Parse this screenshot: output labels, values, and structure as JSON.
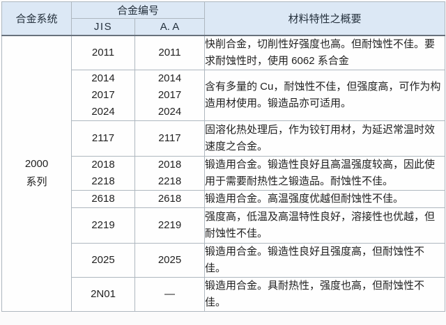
{
  "table": {
    "header": {
      "system": "合金系统",
      "alloy_number": "合金编号",
      "jis": "JIS",
      "aa": "A. A",
      "description": "材料特性之概要"
    },
    "system_group": "2000\n系列",
    "rows": [
      {
        "jis": "2011",
        "aa": "2011",
        "desc": "快削合金，切削性好强度也高。但耐蚀性不佳。要求耐蚀性时，使用 6062 系合金"
      },
      {
        "jis": "2014\n2017\n2024",
        "aa": "2014\n2017\n2024",
        "desc": "含有多量的 Cu，耐蚀性不佳，但强度高，可作为构造用材使用。锻造品亦可适用。"
      },
      {
        "jis": "2117",
        "aa": "2117",
        "desc": "固溶化热处理后，作为铰钉用材，为延迟常温时效速度之合金。"
      },
      {
        "jis": "2018\n2218",
        "aa": "2018\n2218",
        "desc": "锻造用合金。锻造性良好且高温强度较高，因此使用于需要耐热性之锻造品。耐蚀性不佳。"
      },
      {
        "jis": "2618",
        "aa": "2618",
        "desc": "锻造用合金。高温强度优越但耐蚀性不佳。"
      },
      {
        "jis": "2219",
        "aa": "2219",
        "desc": "强度高，低温及高温特性良好，溶接性也优越，但耐蚀性不佳。"
      },
      {
        "jis": "2025",
        "aa": "2025",
        "desc": "锻造用合金。锻造性良好且强度高，但耐蚀性不佳。"
      },
      {
        "jis": "2N01",
        "aa": "—",
        "desc": "锻造用合金。具耐热性，强度也高，但耐蚀性不佳。"
      }
    ],
    "colors": {
      "header_bg": "#dce8f5",
      "border": "#aeb7bf",
      "header_bottom_border": "#67717c",
      "text": "#1f1f1f"
    }
  }
}
